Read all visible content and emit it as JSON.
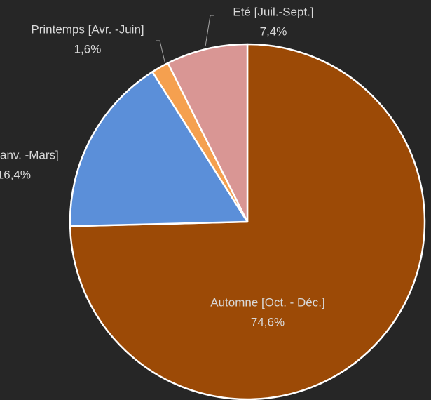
{
  "chart_data": {
    "type": "pie",
    "categories": [
      "Automne  [Oct. - Déc.]",
      "anv. -Mars]",
      "Printemps [Avr. -Juin]",
      "Eté [Juil.-Sept.]"
    ],
    "values": [
      74.6,
      16.4,
      1.6,
      7.4
    ],
    "value_labels": [
      "74,6%",
      "16,4%",
      "1,6%",
      "7,4%"
    ],
    "colors": [
      "#9c4a06",
      "#5b8fd9",
      "#f5a04f",
      "#d99694"
    ]
  }
}
